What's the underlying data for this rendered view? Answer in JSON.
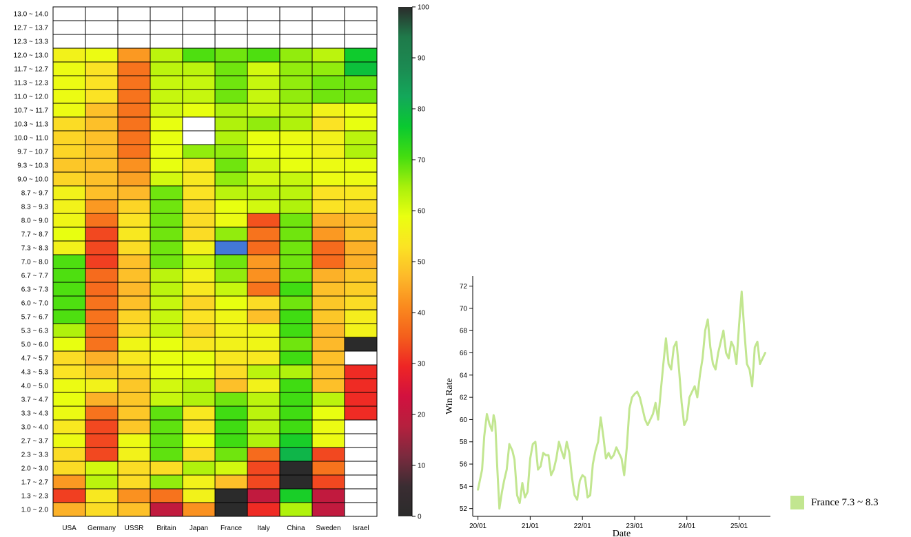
{
  "chart_data": [
    {
      "type": "heatmap",
      "x_categories": [
        "USA",
        "Germany",
        "USSR",
        "Britain",
        "Japan",
        "France",
        "Italy",
        "China",
        "Sweden",
        "Israel"
      ],
      "y_categories": [
        "13.0 ~ 14.0",
        "12.7 ~ 13.7",
        "12.3 ~ 13.3",
        "12.0 ~ 13.0",
        "11.7 ~ 12.7",
        "11.3 ~ 12.3",
        "11.0 ~ 12.0",
        "10.7 ~ 11.7",
        "10.3 ~ 11.3",
        "10.0 ~ 11.0",
        "9.7 ~ 10.7",
        "9.3 ~ 10.3",
        "9.0 ~ 10.0",
        "8.7 ~ 9.7",
        "8.3 ~ 9.3",
        "8.0 ~ 9.0",
        "7.7 ~ 8.7",
        "7.3 ~ 8.3",
        "7.0 ~ 8.0",
        "6.7 ~ 7.7",
        "6.3 ~ 7.3",
        "6.0 ~ 7.0",
        "5.7 ~ 6.7",
        "5.3 ~ 6.3",
        "5.0 ~ 6.0",
        "4.7 ~ 5.7",
        "4.3 ~ 5.3",
        "4.0 ~ 5.0",
        "3.7 ~ 4.7",
        "3.3 ~ 4.3",
        "3.0 ~ 4.0",
        "2.7 ~ 3.7",
        "2.3 ~ 3.3",
        "2.0 ~ 3.0",
        "1.7 ~ 2.7",
        "1.3 ~ 2.3",
        "1.0 ~ 2.0"
      ],
      "values": [
        [
          null,
          null,
          null,
          null,
          null,
          null,
          null,
          null,
          null,
          null
        ],
        [
          null,
          null,
          null,
          null,
          null,
          null,
          null,
          null,
          null,
          null
        ],
        [
          null,
          null,
          null,
          null,
          null,
          null,
          null,
          null,
          null,
          null
        ],
        [
          56,
          58,
          43,
          63,
          70,
          68,
          70,
          66,
          63,
          76
        ],
        [
          58,
          53,
          38,
          63,
          63,
          68,
          61,
          66,
          66,
          78
        ],
        [
          58,
          53,
          38,
          62,
          62,
          68,
          62,
          66,
          68,
          68
        ],
        [
          58,
          53,
          38,
          62,
          62,
          68,
          62,
          66,
          68,
          68
        ],
        [
          58,
          48,
          38,
          61,
          59,
          64,
          62,
          63,
          56,
          59
        ],
        [
          52,
          48,
          38,
          59,
          null,
          64,
          66,
          64,
          53,
          59
        ],
        [
          51,
          48,
          38,
          59,
          null,
          64,
          59,
          58,
          56,
          63
        ],
        [
          51,
          48,
          38,
          59,
          66,
          66,
          59,
          59,
          56,
          64
        ],
        [
          49,
          48,
          42,
          59,
          54,
          68,
          61,
          59,
          58,
          59
        ],
        [
          51,
          48,
          44,
          61,
          54,
          66,
          61,
          62,
          58,
          58
        ],
        [
          56,
          48,
          47,
          68,
          53,
          63,
          63,
          63,
          53,
          54
        ],
        [
          56,
          43,
          51,
          68,
          52,
          59,
          61,
          64,
          53,
          52
        ],
        [
          57,
          38,
          53,
          68,
          52,
          58,
          34,
          68,
          46,
          48
        ],
        [
          59,
          33,
          54,
          68,
          52,
          66,
          38,
          68,
          43,
          49
        ],
        [
          56,
          33,
          52,
          68,
          56,
          "blue",
          37,
          68,
          37,
          46
        ],
        [
          70,
          32,
          48,
          68,
          62,
          68,
          43,
          68,
          37,
          46
        ],
        [
          70,
          37,
          48,
          63,
          56,
          66,
          42,
          68,
          46,
          49
        ],
        [
          70,
          37,
          47,
          63,
          54,
          62,
          38,
          71,
          48,
          50
        ],
        [
          70,
          38,
          48,
          62,
          51,
          59,
          52,
          68,
          49,
          52
        ],
        [
          70,
          38,
          51,
          62,
          53,
          57,
          48,
          71,
          49,
          55
        ],
        [
          64,
          38,
          52,
          62,
          51,
          56,
          57,
          71,
          47,
          56
        ],
        [
          59,
          38,
          57,
          59,
          54,
          56,
          57,
          68,
          47,
          0
        ],
        [
          52,
          46,
          54,
          59,
          59,
          54,
          54,
          71,
          48,
          null
        ],
        [
          53,
          49,
          51,
          59,
          59,
          52,
          63,
          64,
          48,
          30
        ],
        [
          58,
          56,
          49,
          61,
          63,
          48,
          56,
          71,
          48,
          30
        ],
        [
          59,
          46,
          49,
          62,
          64,
          68,
          63,
          71,
          63,
          30
        ],
        [
          58,
          38,
          49,
          69,
          54,
          71,
          63,
          71,
          59,
          30
        ],
        [
          54,
          33,
          49,
          69,
          53,
          71,
          63,
          71,
          58,
          null
        ],
        [
          58,
          33,
          58,
          69,
          59,
          71,
          64,
          75,
          58,
          null
        ],
        [
          52,
          33,
          56,
          69,
          52,
          68,
          37,
          80,
          33,
          null
        ],
        [
          52,
          61,
          52,
          52,
          64,
          61,
          33,
          0,
          38,
          null
        ],
        [
          43,
          63,
          52,
          66,
          56,
          48,
          33,
          0,
          33,
          null
        ],
        [
          32,
          54,
          42,
          38,
          56,
          0,
          20,
          75,
          20,
          null
        ],
        [
          46,
          52,
          48,
          20,
          42,
          0,
          30,
          64,
          20,
          null
        ]
      ],
      "colorbar": {
        "min": 0,
        "max": 100,
        "ticks": [
          0,
          10,
          20,
          30,
          40,
          50,
          60,
          70,
          80,
          90,
          100
        ]
      },
      "colors": {
        "scale": [
          "#2b2b2b",
          "#3a2d32",
          "#7a2a3e",
          "#b5203e",
          "#d2113f",
          "#ee2525",
          "#f45f1c",
          "#fa8a1e",
          "#fdb92a",
          "#fbe324",
          "#eaff10",
          "#a8f00c",
          "#44dd10",
          "#0ac930",
          "#13a85a",
          "#1c8a52",
          "#1f7a4a",
          "#2b2b2b"
        ],
        "blue_cell": "#4378d8",
        "empty_cell": "#ffffff",
        "cell_border": "#000000"
      }
    },
    {
      "type": "line",
      "xlabel": "Date",
      "ylabel": "Win Rate",
      "x_ticks": [
        "20/01",
        "21/01",
        "22/01",
        "23/01",
        "24/01",
        "25/01"
      ],
      "y_ticks": [
        52,
        54,
        56,
        58,
        60,
        62,
        64,
        66,
        68,
        70,
        72
      ],
      "ylim": [
        51.3,
        72.9
      ],
      "xlim_days": [
        -0.1,
        5.6
      ],
      "series": [
        {
          "name": "France 7.3 ~ 8.3",
          "color": "#c2e690",
          "points": [
            [
              0.0,
              53.7
            ],
            [
              0.08,
              55.5
            ],
            [
              0.12,
              58.5
            ],
            [
              0.17,
              60.5
            ],
            [
              0.22,
              59.6
            ],
            [
              0.27,
              59.0
            ],
            [
              0.3,
              60.4
            ],
            [
              0.33,
              59.8
            ],
            [
              0.37,
              55.7
            ],
            [
              0.41,
              52.0
            ],
            [
              0.46,
              53.5
            ],
            [
              0.5,
              54.5
            ],
            [
              0.55,
              55.5
            ],
            [
              0.6,
              57.8
            ],
            [
              0.66,
              57.2
            ],
            [
              0.7,
              56.4
            ],
            [
              0.75,
              53.2
            ],
            [
              0.8,
              52.5
            ],
            [
              0.85,
              54.3
            ],
            [
              0.9,
              53.0
            ],
            [
              0.95,
              53.5
            ],
            [
              1.0,
              56.5
            ],
            [
              1.05,
              57.8
            ],
            [
              1.1,
              58.0
            ],
            [
              1.15,
              55.5
            ],
            [
              1.2,
              55.8
            ],
            [
              1.25,
              57.0
            ],
            [
              1.3,
              56.8
            ],
            [
              1.35,
              56.8
            ],
            [
              1.4,
              55.0
            ],
            [
              1.45,
              55.5
            ],
            [
              1.5,
              56.5
            ],
            [
              1.55,
              58.0
            ],
            [
              1.6,
              57.2
            ],
            [
              1.65,
              56.5
            ],
            [
              1.7,
              58.0
            ],
            [
              1.75,
              57.0
            ],
            [
              1.8,
              54.8
            ],
            [
              1.85,
              53.2
            ],
            [
              1.9,
              52.8
            ],
            [
              1.95,
              54.5
            ],
            [
              2.0,
              55.0
            ],
            [
              2.05,
              54.8
            ],
            [
              2.1,
              53.0
            ],
            [
              2.15,
              53.2
            ],
            [
              2.2,
              56.0
            ],
            [
              2.25,
              57.2
            ],
            [
              2.3,
              58.0
            ],
            [
              2.35,
              60.2
            ],
            [
              2.4,
              58.5
            ],
            [
              2.45,
              56.5
            ],
            [
              2.5,
              57.0
            ],
            [
              2.55,
              56.5
            ],
            [
              2.6,
              56.8
            ],
            [
              2.65,
              57.5
            ],
            [
              2.7,
              57.0
            ],
            [
              2.75,
              56.5
            ],
            [
              2.8,
              55.0
            ],
            [
              2.85,
              57.5
            ],
            [
              2.9,
              61.0
            ],
            [
              2.95,
              62.0
            ],
            [
              3.0,
              62.3
            ],
            [
              3.05,
              62.5
            ],
            [
              3.1,
              62.0
            ],
            [
              3.15,
              61.0
            ],
            [
              3.2,
              60.0
            ],
            [
              3.25,
              59.5
            ],
            [
              3.3,
              60.0
            ],
            [
              3.35,
              60.5
            ],
            [
              3.4,
              61.5
            ],
            [
              3.45,
              60.0
            ],
            [
              3.5,
              62.5
            ],
            [
              3.55,
              65.0
            ],
            [
              3.6,
              67.3
            ],
            [
              3.65,
              65.0
            ],
            [
              3.7,
              64.5
            ],
            [
              3.75,
              66.5
            ],
            [
              3.8,
              67.0
            ],
            [
              3.85,
              64.5
            ],
            [
              3.9,
              61.5
            ],
            [
              3.95,
              59.5
            ],
            [
              4.0,
              60.0
            ],
            [
              4.05,
              62.0
            ],
            [
              4.1,
              62.5
            ],
            [
              4.15,
              63.0
            ],
            [
              4.2,
              62.0
            ],
            [
              4.25,
              64.0
            ],
            [
              4.3,
              65.5
            ],
            [
              4.35,
              68.0
            ],
            [
              4.4,
              69.0
            ],
            [
              4.45,
              66.5
            ],
            [
              4.5,
              65.0
            ],
            [
              4.55,
              64.5
            ],
            [
              4.6,
              66.0
            ],
            [
              4.65,
              67.0
            ],
            [
              4.7,
              68.0
            ],
            [
              4.75,
              66.0
            ],
            [
              4.8,
              65.5
            ],
            [
              4.85,
              67.0
            ],
            [
              4.9,
              66.5
            ],
            [
              4.95,
              65.0
            ],
            [
              5.0,
              68.5
            ],
            [
              5.05,
              71.5
            ],
            [
              5.1,
              68.0
            ],
            [
              5.15,
              65.0
            ],
            [
              5.2,
              64.5
            ],
            [
              5.25,
              63.0
            ],
            [
              5.3,
              66.5
            ],
            [
              5.35,
              67.0
            ],
            [
              5.4,
              65.0
            ],
            [
              5.45,
              65.5
            ],
            [
              5.5,
              66.0
            ]
          ]
        }
      ]
    }
  ]
}
